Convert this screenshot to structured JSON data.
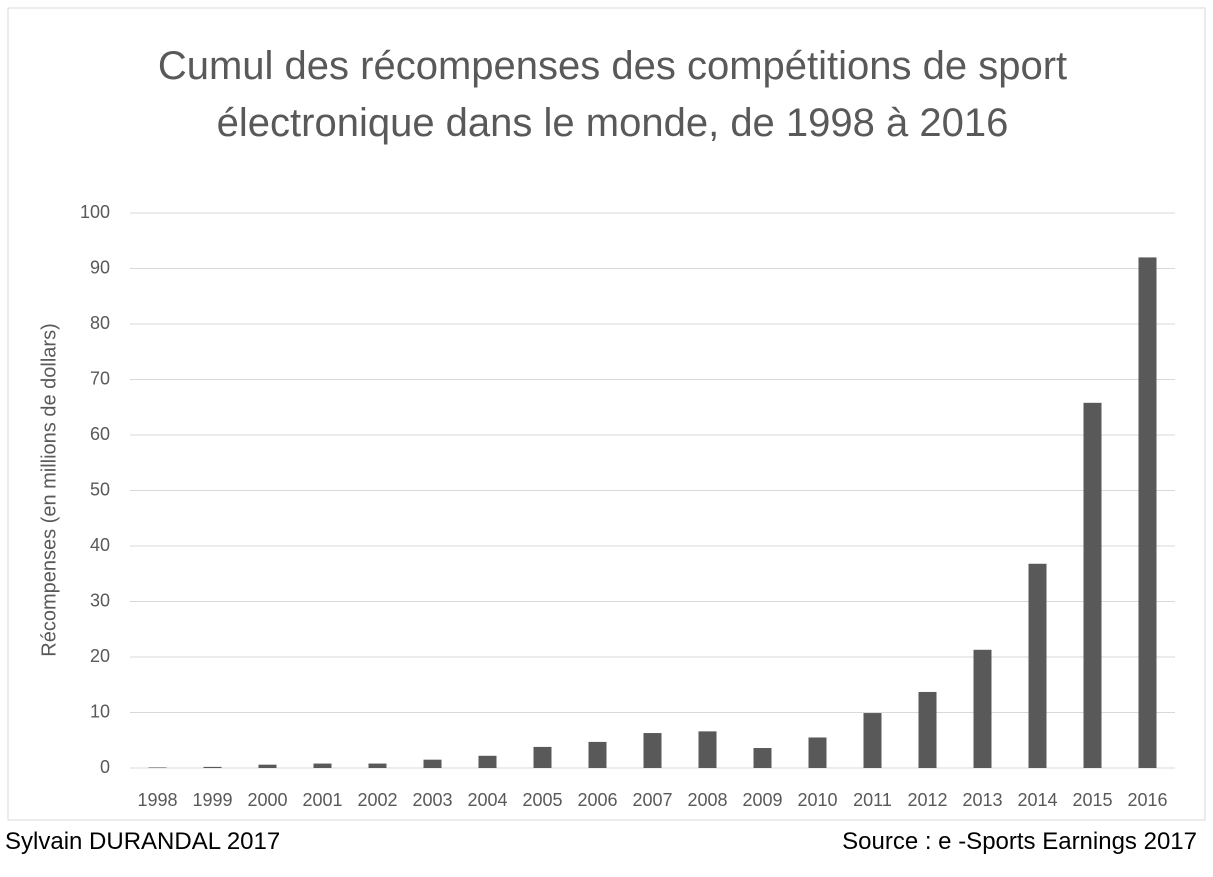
{
  "chart_data": {
    "type": "bar",
    "title": "Cumul des récompenses des compétitions de sport électronique dans le monde, de 1998 à 2016",
    "y_label": "Récompenses (en millions de dollars)",
    "categories": [
      "1998",
      "1999",
      "2000",
      "2001",
      "2002",
      "2003",
      "2004",
      "2005",
      "2006",
      "2007",
      "2008",
      "2009",
      "2010",
      "2011",
      "2012",
      "2013",
      "2014",
      "2015",
      "2016"
    ],
    "values": [
      0.1,
      0.2,
      0.6,
      0.8,
      0.8,
      1.5,
      2.2,
      3.8,
      4.7,
      6.3,
      6.6,
      3.6,
      5.5,
      9.9,
      13.7,
      21.3,
      36.8,
      65.8,
      92
    ],
    "color": "#595959",
    "ylim": [
      0,
      100
    ],
    "yticks": [
      0,
      10,
      20,
      30,
      40,
      50,
      60,
      70,
      80,
      90,
      100
    ],
    "grid": true
  },
  "footer": {
    "author": "Sylvain DURANDAL 2017",
    "source": "Source : e -Sports Earnings 2017"
  }
}
